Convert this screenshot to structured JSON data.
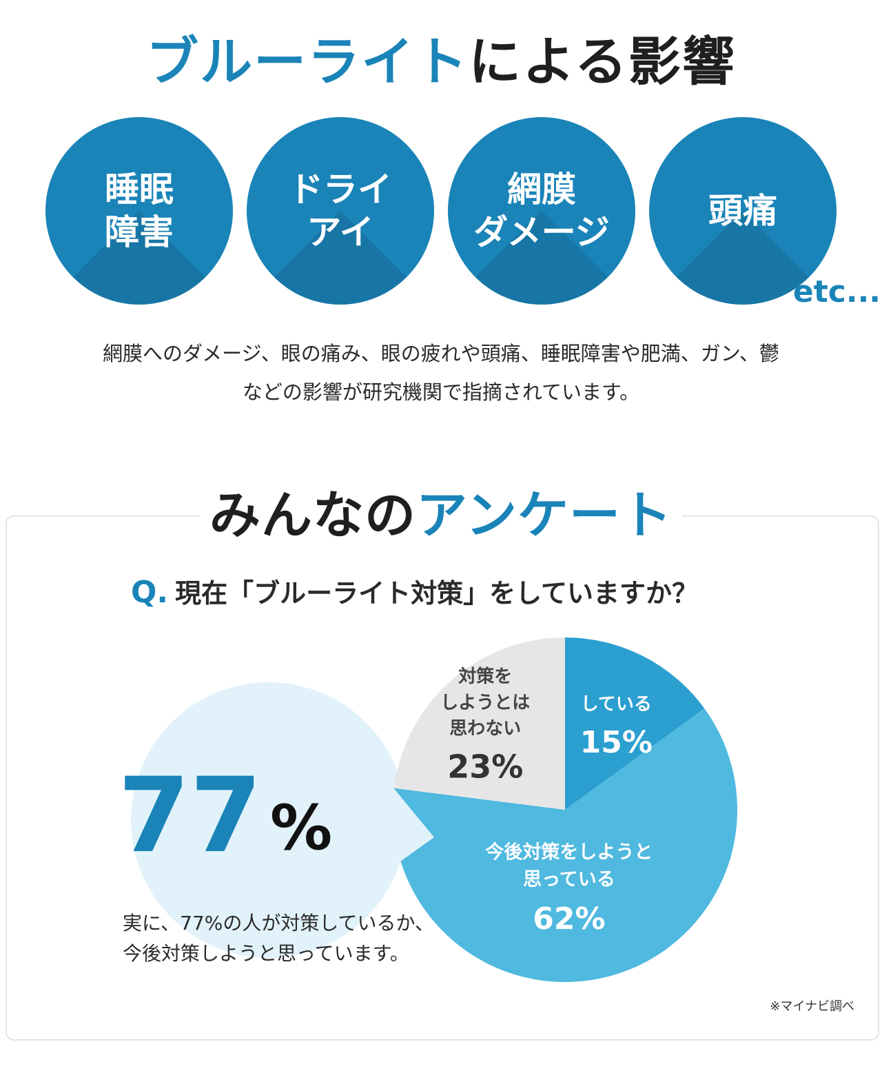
{
  "section1": {
    "title_blue": "ブルーライト",
    "title_rest": "による影響",
    "circles": [
      {
        "label": "睡眠\n障害"
      },
      {
        "label": "ドライ\nアイ"
      },
      {
        "label": "網膜\nダメージ"
      },
      {
        "label": "頭痛"
      }
    ],
    "etc": "etc...",
    "description": "網膜へのダメージ、眼の痛み、眼の疲れや頭痛、睡眠障害や肥満、ガン、鬱\nなどの影響が研究機関で指摘されています。"
  },
  "section2": {
    "title_black": "みんなの",
    "title_blue": "アンケート",
    "question_marker": "Q.",
    "question": "現在「ブルーライト対策」をしていますか？",
    "big_number": "77",
    "big_percent": "%",
    "summary": "実に、77%の人が対策しているか、\n今後対策しようと思っています。",
    "note": "※マイナビ調べ"
  },
  "colors": {
    "brand_blue": "#1a84b8",
    "slice_doing": "#2a9fd0",
    "slice_planning": "#50b9df",
    "slice_not": "#e6e6e6",
    "bubble": "#e2f2fa"
  },
  "chart_data": {
    "type": "pie",
    "title": "現在「ブルーライト対策」をしていますか？",
    "slices": [
      {
        "label": "している",
        "value": 15,
        "display": "15%",
        "color": "#2a9fd0"
      },
      {
        "label": "今後対策をしようと思っている",
        "value": 62,
        "display": "62%",
        "color": "#50b9df"
      },
      {
        "label": "対策をしようとは思わない",
        "value": 23,
        "display": "23%",
        "color": "#e6e6e6"
      }
    ]
  }
}
